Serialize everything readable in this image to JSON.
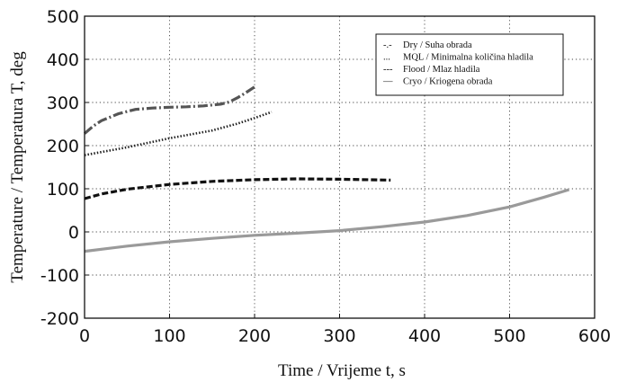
{
  "chart_data": {
    "type": "line",
    "title": "",
    "xlabel": "Time / Vrijeme t, s",
    "ylabel": "Temperature / Temperatura T, deg",
    "xlim": [
      0,
      600
    ],
    "ylim": [
      -200,
      500
    ],
    "xticks": [
      0,
      100,
      200,
      300,
      400,
      500,
      600
    ],
    "yticks": [
      -200,
      -100,
      0,
      100,
      200,
      300,
      400,
      500
    ],
    "grid": true,
    "legend_position": "top-right",
    "series": [
      {
        "name": "Dry / Suha obrada",
        "legend_marker": "-.-",
        "style": "dashdot",
        "color": "#555555",
        "x": [
          0,
          10,
          20,
          40,
          60,
          80,
          100,
          120,
          140,
          160,
          170,
          180,
          190,
          200
        ],
        "y": [
          228,
          245,
          258,
          274,
          284,
          287,
          289,
          290,
          292,
          296,
          301,
          311,
          323,
          336
        ]
      },
      {
        "name": "MQL / Minimalna količina hladila",
        "legend_marker": "...",
        "style": "dotted",
        "color": "#222222",
        "x": [
          0,
          50,
          100,
          150,
          180,
          200,
          220
        ],
        "y": [
          178,
          196,
          217,
          235,
          251,
          264,
          278
        ]
      },
      {
        "name": "Flood / Mlaz hladila",
        "legend_marker": "---",
        "style": "dashed",
        "color": "#111111",
        "x": [
          0,
          20,
          50,
          100,
          150,
          200,
          250,
          300,
          360
        ],
        "y": [
          77,
          88,
          99,
          110,
          117,
          121,
          123,
          122,
          120
        ]
      },
      {
        "name": "Cryo / Kriogena obrada",
        "legend_marker": "—",
        "style": "solid",
        "color": "#9a9a9a",
        "x": [
          0,
          50,
          100,
          150,
          200,
          250,
          300,
          350,
          400,
          450,
          500,
          540,
          570
        ],
        "y": [
          -45,
          -33,
          -23,
          -15,
          -8,
          -3,
          3,
          12,
          23,
          38,
          58,
          80,
          98
        ]
      }
    ]
  }
}
